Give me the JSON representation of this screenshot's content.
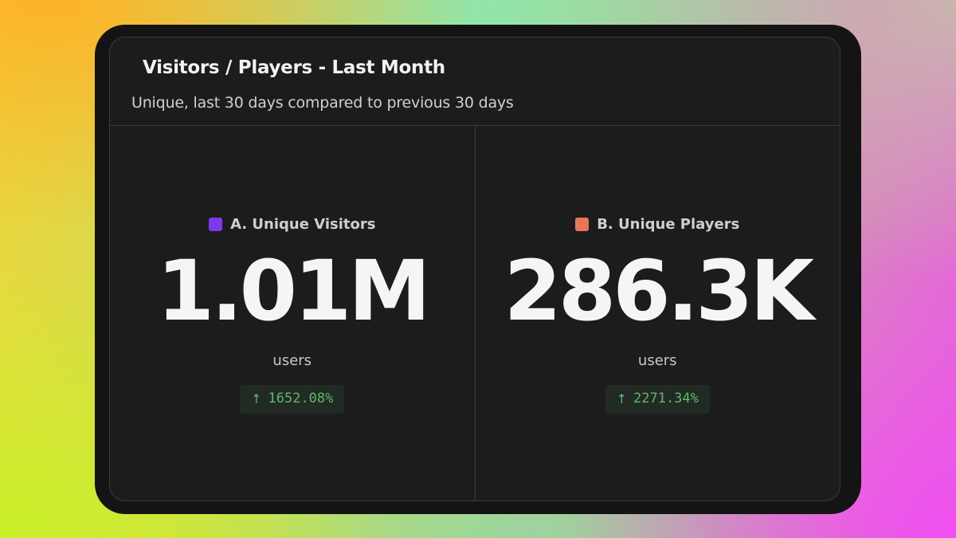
{
  "card": {
    "title": "Visitors / Players - Last Month",
    "subtitle": "Unique, last 30 days compared to previous 30 days"
  },
  "metrics": [
    {
      "label": "A. Unique Visitors",
      "swatch_color": "#7c3aed",
      "value": "1.01M",
      "unit": "users",
      "delta_icon": "arrow-up-icon",
      "delta_arrow": "↑",
      "delta": "1652.08%",
      "delta_color": "#5fb86a"
    },
    {
      "label": "B. Unique Players",
      "swatch_color": "#e8765a",
      "value": "286.3K",
      "unit": "users",
      "delta_icon": "arrow-up-icon",
      "delta_arrow": "↑",
      "delta": "2271.34%",
      "delta_color": "#5fb86a"
    }
  ]
}
